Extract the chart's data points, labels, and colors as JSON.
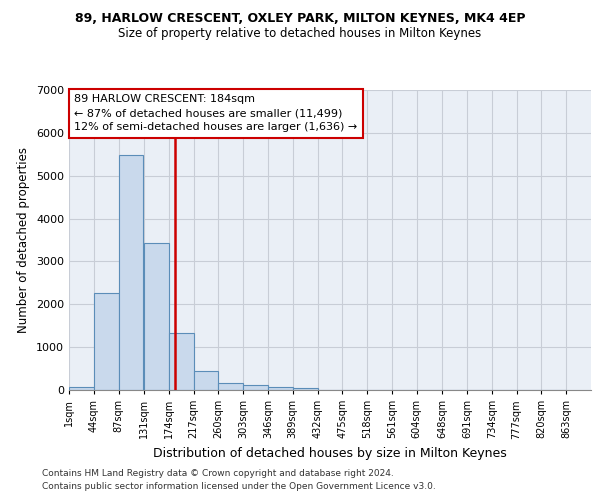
{
  "title1": "89, HARLOW CRESCENT, OXLEY PARK, MILTON KEYNES, MK4 4EP",
  "title2": "Size of property relative to detached houses in Milton Keynes",
  "xlabel": "Distribution of detached houses by size in Milton Keynes",
  "ylabel": "Number of detached properties",
  "footnote1": "Contains HM Land Registry data © Crown copyright and database right 2024.",
  "footnote2": "Contains public sector information licensed under the Open Government Licence v3.0.",
  "bar_color": "#c9d9ec",
  "bar_edge_color": "#5b8db8",
  "grid_color": "#c8cdd6",
  "bg_color": "#eaeff6",
  "red_line_color": "#cc0000",
  "annotation_box_edge_color": "#cc0000",
  "annotation_text_line1": "89 HARLOW CRESCENT: 184sqm",
  "annotation_text_line2": "← 87% of detached houses are smaller (11,499)",
  "annotation_text_line3": "12% of semi-detached houses are larger (1,636) →",
  "property_size_sqm": 184,
  "bin_edges": [
    1,
    44,
    87,
    131,
    174,
    217,
    260,
    303,
    346,
    389,
    432,
    475,
    518,
    561,
    604,
    648,
    691,
    734,
    777,
    820,
    863
  ],
  "bin_counts": [
    80,
    2270,
    5480,
    3430,
    1330,
    455,
    175,
    125,
    75,
    48,
    0,
    0,
    0,
    0,
    0,
    0,
    0,
    0,
    0,
    0
  ],
  "ylim": [
    0,
    7000
  ],
  "yticks": [
    0,
    1000,
    2000,
    3000,
    4000,
    5000,
    6000,
    7000
  ]
}
